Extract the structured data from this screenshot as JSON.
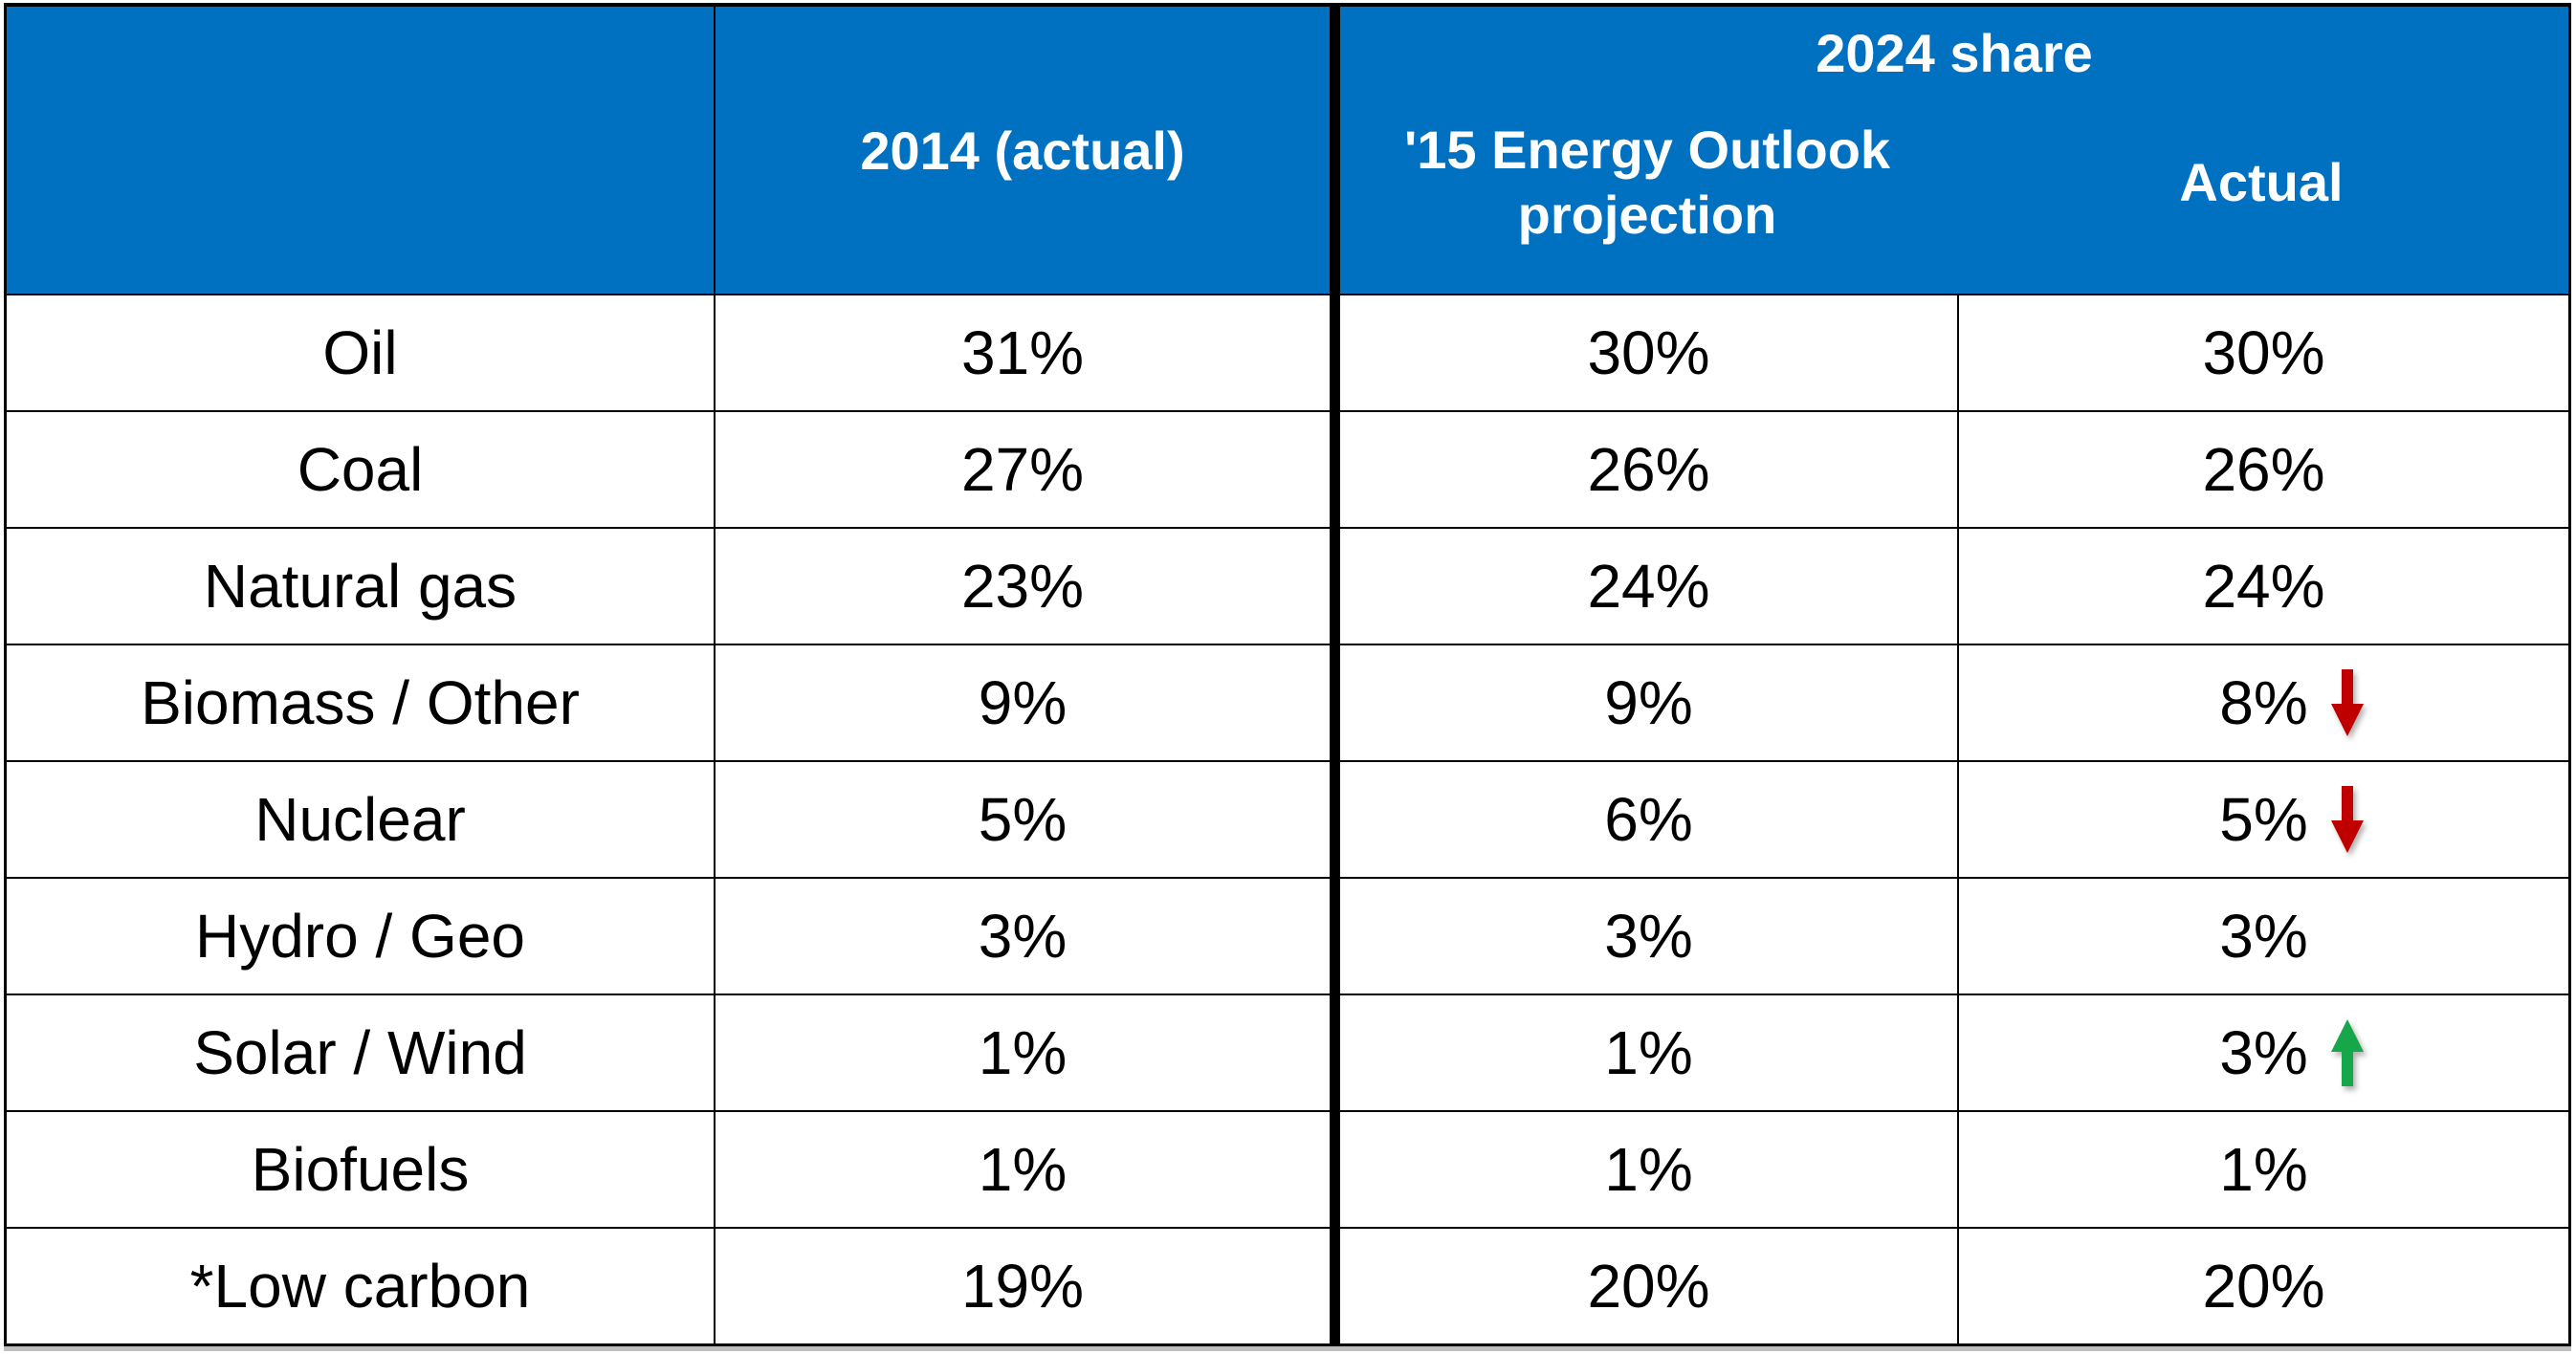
{
  "colors": {
    "header_bg": "#0070C0",
    "header_text": "#FFFFFF",
    "grid_border": "#000000",
    "body_text": "#000000",
    "trend_up": "#17A74B",
    "trend_down": "#C00000"
  },
  "header": {
    "col_2014": "2014 (actual)",
    "share_2024": "2024 share",
    "projection": "'15 Energy Outlook projection",
    "actual": "Actual"
  },
  "table": {
    "rows": [
      {
        "label": "Oil",
        "y2014": "31%",
        "projection": "30%",
        "actual": "30%",
        "trend": null
      },
      {
        "label": "Coal",
        "y2014": "27%",
        "projection": "26%",
        "actual": "26%",
        "trend": null
      },
      {
        "label": "Natural gas",
        "y2014": "23%",
        "projection": "24%",
        "actual": "24%",
        "trend": null
      },
      {
        "label": "Biomass / Other",
        "y2014": "9%",
        "projection": "9%",
        "actual": "8%",
        "trend": "down"
      },
      {
        "label": "Nuclear",
        "y2014": "5%",
        "projection": "6%",
        "actual": "5%",
        "trend": "down"
      },
      {
        "label": "Hydro / Geo",
        "y2014": "3%",
        "projection": "3%",
        "actual": "3%",
        "trend": null
      },
      {
        "label": "Solar / Wind",
        "y2014": "1%",
        "projection": "1%",
        "actual": "3%",
        "trend": "up"
      },
      {
        "label": "Biofuels",
        "y2014": "1%",
        "projection": "1%",
        "actual": "1%",
        "trend": null
      },
      {
        "label": "*Low carbon",
        "y2014": "19%",
        "projection": "20%",
        "actual": "20%",
        "trend": null
      }
    ]
  },
  "chart_data": {
    "type": "table",
    "title": "2024 share",
    "categories": [
      "Oil",
      "Coal",
      "Natural gas",
      "Biomass / Other",
      "Nuclear",
      "Hydro / Geo",
      "Solar / Wind",
      "Biofuels",
      "*Low carbon"
    ],
    "series": [
      {
        "name": "2014 (actual)",
        "values": [
          31,
          27,
          23,
          9,
          5,
          3,
          1,
          1,
          19
        ]
      },
      {
        "name": "'15 Energy Outlook projection",
        "values": [
          30,
          26,
          24,
          9,
          6,
          3,
          1,
          1,
          20
        ]
      },
      {
        "name": "Actual",
        "values": [
          30,
          26,
          24,
          8,
          5,
          3,
          3,
          1,
          20
        ]
      }
    ],
    "annotations": [
      {
        "category": "Biomass / Other",
        "series": "Actual",
        "trend": "down"
      },
      {
        "category": "Nuclear",
        "series": "Actual",
        "trend": "down"
      },
      {
        "category": "Solar / Wind",
        "series": "Actual",
        "trend": "up"
      }
    ],
    "legend_position": "none",
    "units": "percent"
  }
}
